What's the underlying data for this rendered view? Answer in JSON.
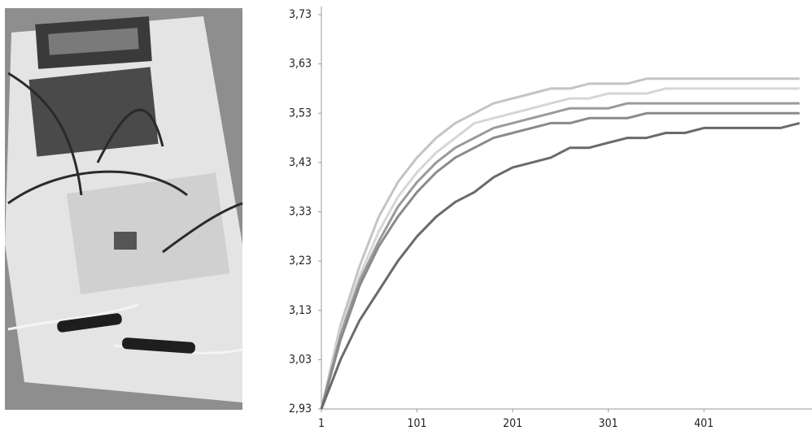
{
  "chart_data": {
    "type": "line",
    "x": [
      1,
      21,
      41,
      61,
      81,
      101,
      121,
      141,
      161,
      181,
      201,
      221,
      241,
      261,
      281,
      301,
      321,
      341,
      361,
      381,
      401,
      421,
      441,
      461,
      481,
      501
    ],
    "series": [
      {
        "color": "#c4c4c4",
        "values": [
          2.93,
          3.1,
          3.22,
          3.32,
          3.39,
          3.44,
          3.48,
          3.51,
          3.53,
          3.55,
          3.56,
          3.57,
          3.58,
          3.58,
          3.59,
          3.59,
          3.59,
          3.6,
          3.6,
          3.6,
          3.6,
          3.6,
          3.6,
          3.6,
          3.6,
          3.6
        ]
      },
      {
        "color": "#d6d6d6",
        "values": [
          2.93,
          3.09,
          3.2,
          3.29,
          3.36,
          3.41,
          3.45,
          3.48,
          3.51,
          3.52,
          3.53,
          3.54,
          3.55,
          3.56,
          3.56,
          3.57,
          3.57,
          3.57,
          3.58,
          3.58,
          3.58,
          3.58,
          3.58,
          3.58,
          3.58,
          3.58
        ]
      },
      {
        "color": "#9a9a9a",
        "values": [
          2.93,
          3.08,
          3.19,
          3.27,
          3.34,
          3.39,
          3.43,
          3.46,
          3.48,
          3.5,
          3.51,
          3.52,
          3.53,
          3.54,
          3.54,
          3.54,
          3.55,
          3.55,
          3.55,
          3.55,
          3.55,
          3.55,
          3.55,
          3.55,
          3.55,
          3.55
        ]
      },
      {
        "color": "#8a8a8a",
        "values": [
          2.93,
          3.07,
          3.18,
          3.26,
          3.32,
          3.37,
          3.41,
          3.44,
          3.46,
          3.48,
          3.49,
          3.5,
          3.51,
          3.51,
          3.52,
          3.52,
          3.52,
          3.53,
          3.53,
          3.53,
          3.53,
          3.53,
          3.53,
          3.53,
          3.53,
          3.53
        ]
      },
      {
        "color": "#6a6a6a",
        "values": [
          2.93,
          3.03,
          3.11,
          3.17,
          3.23,
          3.28,
          3.32,
          3.35,
          3.37,
          3.4,
          3.42,
          3.43,
          3.44,
          3.46,
          3.46,
          3.47,
          3.48,
          3.48,
          3.49,
          3.49,
          3.5,
          3.5,
          3.5,
          3.5,
          3.5,
          3.51
        ]
      }
    ],
    "xlim": [
      1,
      514
    ],
    "xticks": [
      1,
      101,
      201,
      301,
      401
    ],
    "ylim": [
      2.93,
      3.73
    ],
    "yticks": [
      {
        "value": 2.93,
        "label": "2,93"
      },
      {
        "value": 3.03,
        "label": "3,03"
      },
      {
        "value": 3.13,
        "label": "3,13"
      },
      {
        "value": 3.23,
        "label": "3,23"
      },
      {
        "value": 3.33,
        "label": "3,33"
      },
      {
        "value": 3.43,
        "label": "3,43"
      },
      {
        "value": 3.53,
        "label": "3,53"
      },
      {
        "value": 3.63,
        "label": "3,63"
      },
      {
        "value": 3.73,
        "label": "3,73"
      }
    ],
    "grid": false
  }
}
